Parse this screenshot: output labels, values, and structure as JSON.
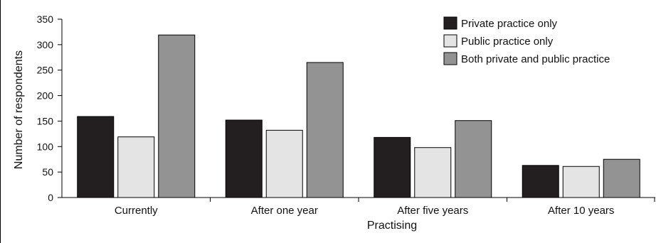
{
  "chart_data": {
    "type": "bar",
    "title": "",
    "xlabel": "Practising",
    "ylabel": "Number of respondents",
    "ylim": [
      0,
      350
    ],
    "yticks": [
      0,
      50,
      100,
      150,
      200,
      250,
      300,
      350
    ],
    "grid": false,
    "legend_position": "top-right",
    "categories": [
      "Currently",
      "After one year",
      "After five years",
      "After 10 years"
    ],
    "series": [
      {
        "name": "Private practice only",
        "color": "#231f20",
        "values": [
          159,
          152,
          118,
          63
        ]
      },
      {
        "name": "Public practice only",
        "color": "#e4e4e4",
        "values": [
          119,
          132,
          98,
          61
        ]
      },
      {
        "name": "Both private and public practice",
        "color": "#939393",
        "values": [
          319,
          265,
          151,
          75
        ]
      }
    ]
  }
}
